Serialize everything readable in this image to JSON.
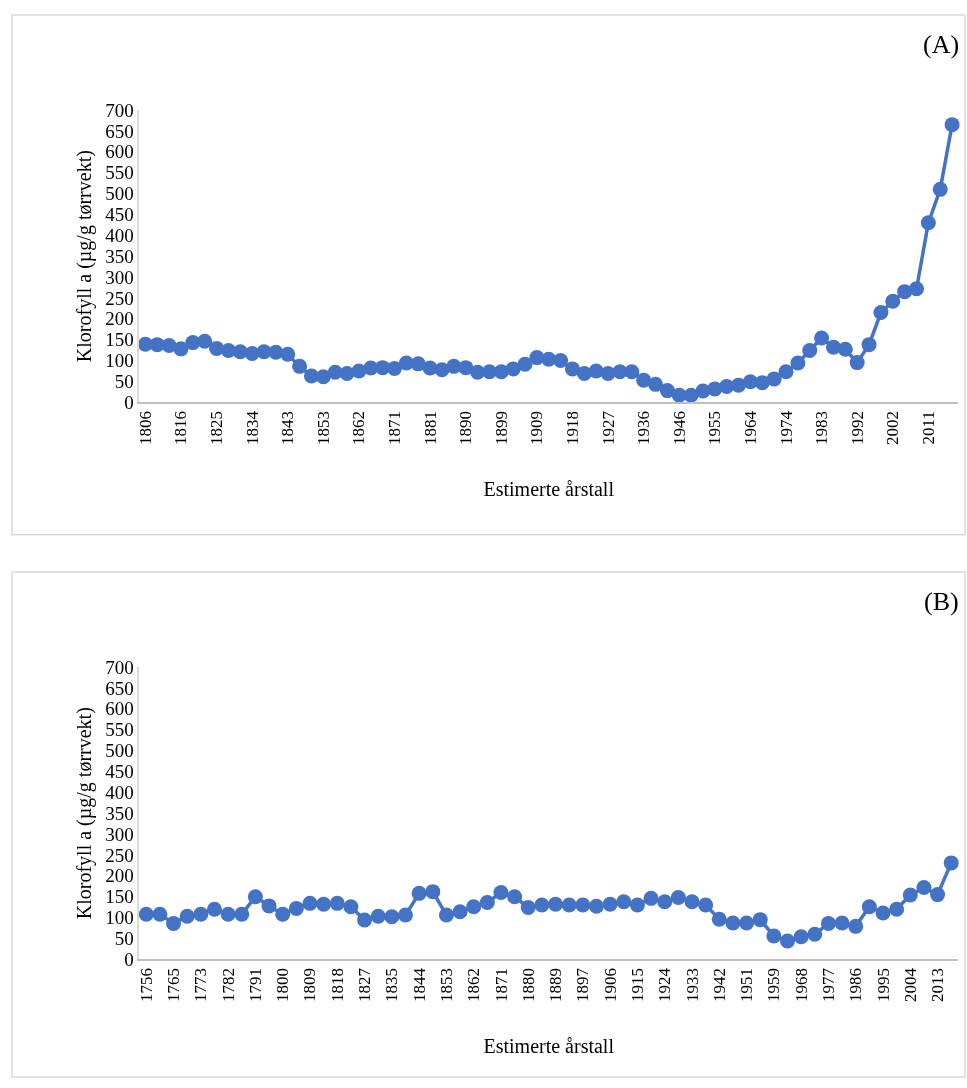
{
  "chart_data": [
    {
      "type": "line",
      "title": "(A)",
      "xlabel": "Estimerte årstall",
      "ylabel": "Klorofyll a (µg/g tørrvekt)",
      "marker": "circle",
      "line_style": "solid",
      "ylim": [
        0,
        700
      ],
      "yticks": [
        0,
        50,
        100,
        150,
        200,
        250,
        300,
        350,
        400,
        450,
        500,
        550,
        600,
        650,
        700
      ],
      "categories": [
        "1806",
        null,
        null,
        "1816",
        null,
        null,
        "1825",
        null,
        null,
        "1834",
        null,
        null,
        "1843",
        null,
        null,
        "1853",
        null,
        null,
        "1862",
        null,
        null,
        "1871",
        null,
        null,
        "1881",
        null,
        null,
        "1890",
        null,
        null,
        "1899",
        null,
        null,
        "1909",
        null,
        null,
        "1918",
        null,
        null,
        "1927",
        null,
        null,
        "1936",
        null,
        null,
        "1946",
        null,
        null,
        "1955",
        null,
        null,
        "1964",
        null,
        null,
        "1974",
        null,
        null,
        "1983",
        null,
        null,
        "1992",
        null,
        null,
        "2002",
        null,
        null,
        "2011",
        null,
        null
      ],
      "series": [
        {
          "color": "#4472c4",
          "values": [
            139,
            138,
            136,
            128,
            143,
            146,
            129,
            124,
            121,
            117,
            121,
            120,
            115,
            86,
            63,
            61,
            72,
            69,
            75,
            82,
            83,
            81,
            94,
            92,
            82,
            78,
            86,
            83,
            72,
            73,
            73,
            80,
            91,
            107,
            103,
            100,
            80,
            69,
            75,
            69,
            73,
            73,
            53,
            43,
            28,
            17,
            17,
            27,
            32,
            38,
            41,
            49,
            47,
            56,
            73,
            94,
            124,
            154,
            132,
            127,
            95,
            138,
            215,
            242,
            265,
            272,
            430,
            510,
            665
          ]
        }
      ]
    },
    {
      "type": "line",
      "title": "(B)",
      "xlabel": "Estimerte årstall",
      "ylabel": "Klorofyll a (µg/g tørrvekt)",
      "marker": "circle",
      "line_style": "solid",
      "ylim": [
        0,
        700
      ],
      "yticks": [
        0,
        50,
        100,
        150,
        200,
        250,
        300,
        350,
        400,
        450,
        500,
        550,
        600,
        650,
        700
      ],
      "categories": [
        "1756",
        null,
        "1765",
        null,
        "1773",
        null,
        "1782",
        null,
        "1791",
        null,
        "1800",
        null,
        "1809",
        null,
        "1818",
        null,
        "1827",
        null,
        "1835",
        null,
        "1844",
        null,
        "1853",
        null,
        "1862",
        null,
        "1871",
        null,
        "1880",
        null,
        "1889",
        null,
        "1897",
        null,
        "1906",
        null,
        "1915",
        null,
        "1924",
        null,
        "1933",
        null,
        "1942",
        null,
        "1951",
        null,
        "1959",
        null,
        "1968",
        null,
        "1977",
        null,
        "1986",
        null,
        "1995",
        null,
        "2004",
        null,
        "2013",
        null
      ],
      "series": [
        {
          "color": "#4472c4",
          "values": [
            108,
            108,
            86,
            103,
            108,
            120,
            108,
            108,
            150,
            128,
            108,
            122,
            134,
            132,
            134,
            126,
            94,
            103,
            102,
            106,
            158,
            162,
            106,
            114,
            126,
            136,
            160,
            150,
            124,
            130,
            132,
            130,
            130,
            127,
            132,
            138,
            130,
            146,
            138,
            148,
            138,
            130,
            96,
            87,
            87,
            95,
            56,
            44,
            54,
            60,
            86,
            87,
            79,
            126,
            111,
            120,
            154,
            172,
            155,
            231
          ]
        }
      ]
    }
  ]
}
